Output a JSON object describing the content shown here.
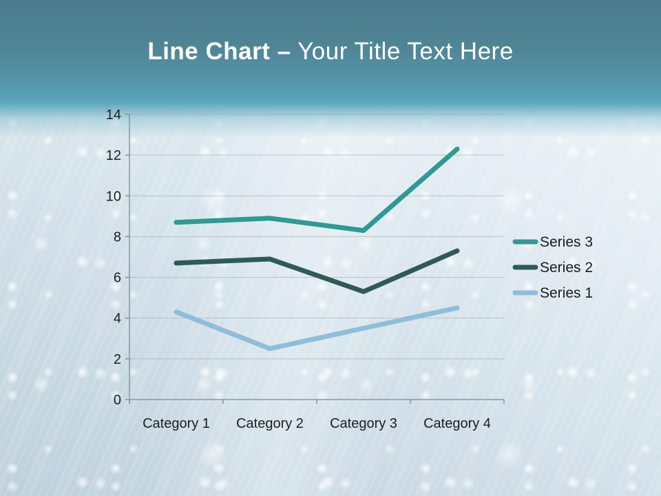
{
  "slide": {
    "title_bold": "Line Chart –",
    "title_regular": "Your Title Text Here"
  },
  "chart_data": {
    "type": "line",
    "stacked": true,
    "title": "",
    "xlabel": "",
    "ylabel": "",
    "categories": [
      "Category 1",
      "Category 2",
      "Category 3",
      "Category 4"
    ],
    "series": [
      {
        "name": "Series 1",
        "color": "#8FBEDA",
        "values": [
          4.3,
          2.5,
          3.5,
          4.5
        ],
        "increments": [
          4.3,
          2.5,
          3.5,
          4.5
        ]
      },
      {
        "name": "Series 2",
        "color": "#2F5A56",
        "values": [
          6.7,
          6.9,
          5.3,
          7.3
        ],
        "increments": [
          2.4,
          4.4,
          1.8,
          2.8
        ]
      },
      {
        "name": "Series 3",
        "color": "#2E9A93",
        "values": [
          8.7,
          8.9,
          8.3,
          12.3
        ],
        "increments": [
          2.0,
          2.0,
          3.0,
          5.0
        ]
      }
    ],
    "y_axis": {
      "min": 0,
      "max": 14,
      "step": 2,
      "ticks": [
        0,
        2,
        4,
        6,
        8,
        10,
        12,
        14
      ]
    },
    "legend": {
      "position": "right",
      "entries": [
        "Series 3",
        "Series 2",
        "Series 1"
      ]
    },
    "grid": true,
    "note": "Stacked line chart; series values are the cumulative positions read off the y-axis"
  },
  "colors": {
    "banner_gradient_top": "#4B7C8D",
    "banner_gradient_bottom": "#5AA5BA",
    "title_text": "#FFFFFF",
    "series_3": "#2E9A93",
    "series_2": "#2F5A56",
    "series_1": "#8FBEDA",
    "gridline": "#9AA4AA",
    "axis_line": "#7E888F",
    "label_text": "#1D1D1D",
    "background_base": "#D7E3EB"
  }
}
